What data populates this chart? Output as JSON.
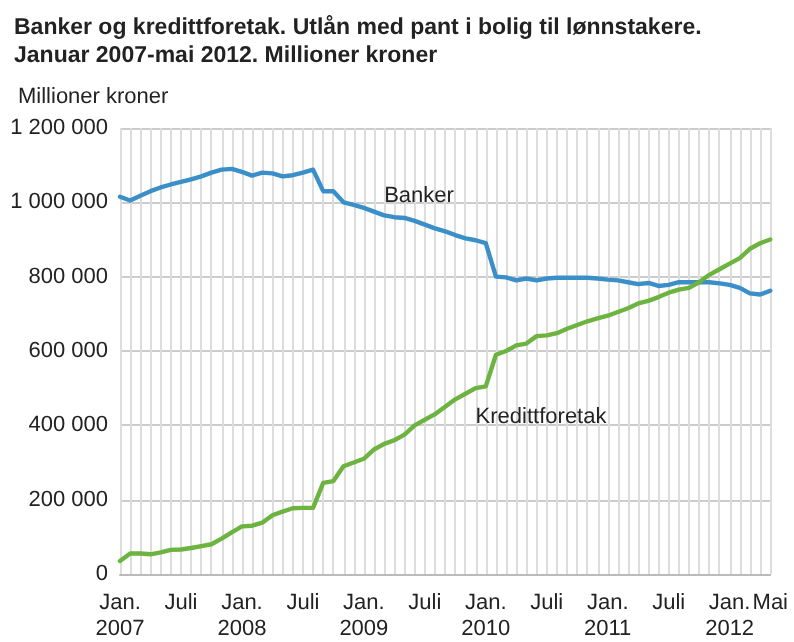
{
  "chart_data": {
    "type": "line",
    "title": "Banker og kredittforetak. Utlån med pant i bolig til lønnstakere. Januar 2007-mai 2012. Millioner kroner",
    "ylabel": "Millioner kroner",
    "categories": [
      "Jan.\n2007",
      null,
      null,
      null,
      null,
      null,
      "Juli",
      null,
      null,
      null,
      null,
      null,
      "Jan.\n2008",
      null,
      null,
      null,
      null,
      null,
      "Juli",
      null,
      null,
      null,
      null,
      null,
      "Jan.\n2009",
      null,
      null,
      null,
      null,
      null,
      "Juli",
      null,
      null,
      null,
      null,
      null,
      "Jan.\n2010",
      null,
      null,
      null,
      null,
      null,
      "Juli",
      null,
      null,
      null,
      null,
      null,
      "Jan.\n2011",
      null,
      null,
      null,
      null,
      null,
      "Juli",
      null,
      null,
      null,
      null,
      null,
      "Jan.\n2012",
      null,
      null,
      null,
      "Mai"
    ],
    "series": [
      {
        "name": "Banker",
        "color": "#3a8fc9",
        "values": [
          1015000,
          1005000,
          1018000,
          1030000,
          1040000,
          1048000,
          1055000,
          1062000,
          1070000,
          1080000,
          1088000,
          1090000,
          1082000,
          1072000,
          1080000,
          1078000,
          1070000,
          1073000,
          1080000,
          1088000,
          1030000,
          1030000,
          1000000,
          993000,
          985000,
          975000,
          965000,
          960000,
          958000,
          950000,
          940000,
          930000,
          922000,
          912000,
          903000,
          898000,
          890000,
          800000,
          798000,
          790000,
          795000,
          790000,
          795000,
          797000,
          797000,
          797000,
          797000,
          795000,
          792000,
          790000,
          785000,
          780000,
          783000,
          775000,
          778000,
          785000,
          785000,
          785000,
          785000,
          782000,
          778000,
          770000,
          755000,
          752000,
          762000
        ]
      },
      {
        "name": "Kredittforetak",
        "color": "#6cb33f",
        "values": [
          35000,
          55000,
          55000,
          53000,
          58000,
          65000,
          66000,
          70000,
          75000,
          80000,
          95000,
          112000,
          128000,
          130000,
          138000,
          158000,
          168000,
          177000,
          178000,
          178000,
          245000,
          250000,
          290000,
          300000,
          310000,
          335000,
          350000,
          360000,
          375000,
          400000,
          415000,
          430000,
          450000,
          470000,
          485000,
          500000,
          505000,
          590000,
          600000,
          615000,
          620000,
          640000,
          642000,
          648000,
          660000,
          670000,
          680000,
          688000,
          695000,
          705000,
          715000,
          728000,
          735000,
          745000,
          757000,
          765000,
          770000,
          785000,
          805000,
          820000,
          835000,
          850000,
          875000,
          890000,
          900000
        ]
      }
    ],
    "ylim": [
      0,
      1200000
    ],
    "yticks": [
      {
        "value": 0,
        "label": "0"
      },
      {
        "value": 200000,
        "label": "200 000"
      },
      {
        "value": 400000,
        "label": "400 000"
      },
      {
        "value": 600000,
        "label": "600 000"
      },
      {
        "value": 800000,
        "label": "800 000"
      },
      {
        "value": 1000000,
        "label": "1 000 000"
      },
      {
        "value": 1200000,
        "label": "1 200 000"
      }
    ],
    "grid": true,
    "legend": false,
    "marker": "none",
    "line_style": "solid"
  }
}
